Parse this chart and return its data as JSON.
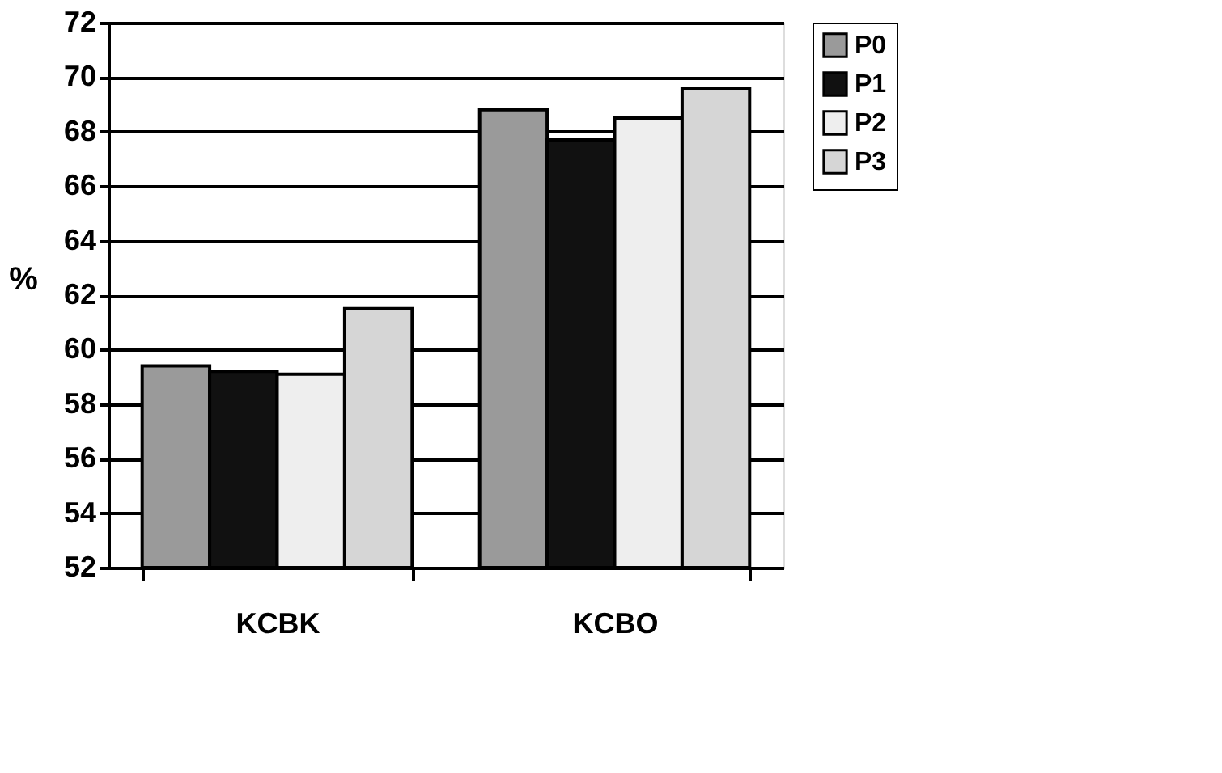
{
  "chart_data": {
    "type": "bar",
    "ylabel": "%",
    "categories": [
      "KCBK",
      "KCBO"
    ],
    "series": [
      {
        "name": "P0",
        "color": "#9a9a9a",
        "values": [
          59.4,
          68.8
        ]
      },
      {
        "name": "P1",
        "color": "#111111",
        "values": [
          59.2,
          67.7
        ]
      },
      {
        "name": "P2",
        "color": "#eeeeee",
        "values": [
          59.1,
          68.5
        ]
      },
      {
        "name": "P3",
        "color": "#d6d6d6",
        "values": [
          61.5,
          69.6
        ]
      }
    ],
    "ylim": [
      52,
      72
    ],
    "yticks": [
      52,
      54,
      56,
      58,
      60,
      62,
      64,
      66,
      68,
      70,
      72
    ],
    "grid": "y",
    "legend": "right"
  }
}
